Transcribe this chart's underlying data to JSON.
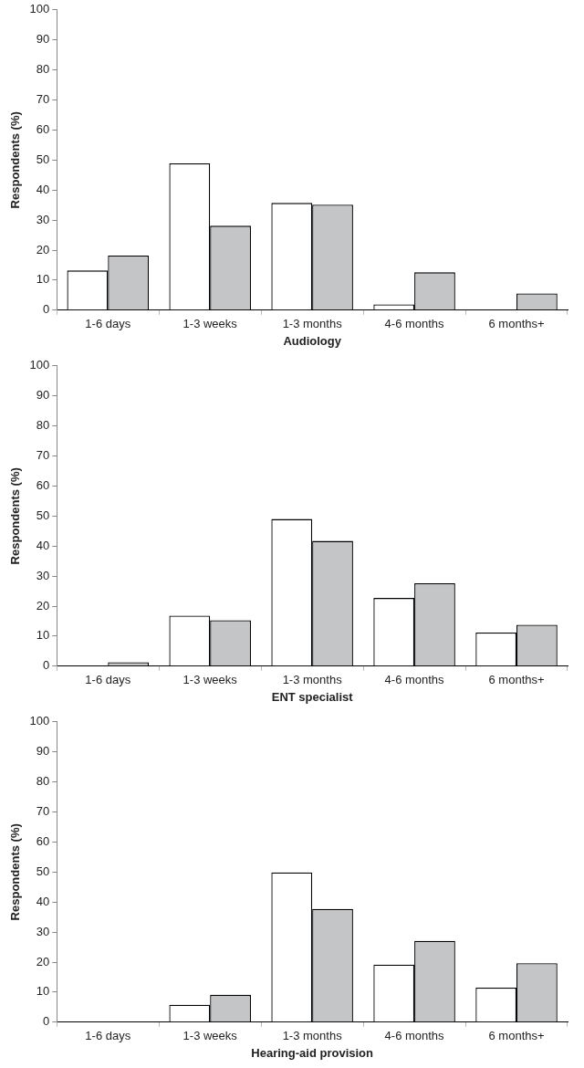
{
  "chart_data": [
    {
      "type": "bar",
      "xlabel": "Audiology",
      "ylabel": "Respondents (%)",
      "categories": [
        "1-6 days",
        "1-3 weeks",
        "1-3 months",
        "4-6 months",
        "6 months+"
      ],
      "series": [
        {
          "color": "#ffffff",
          "values": [
            13.2,
            48.9,
            35.7,
            1.9,
            0
          ]
        },
        {
          "color": "#c4c5c7",
          "values": [
            18.2,
            28.1,
            35.1,
            12.6,
            5.6
          ]
        }
      ],
      "ylim": [
        0,
        100
      ],
      "yticks": [
        0,
        10,
        20,
        30,
        40,
        50,
        60,
        70,
        80,
        90,
        100
      ],
      "grid": false,
      "legend": false
    },
    {
      "type": "bar",
      "xlabel": "ENT specialist",
      "ylabel": "Respondents (%)",
      "categories": [
        "1-6 days",
        "1-3 weeks",
        "1-3 months",
        "4-6 months",
        "6 months+"
      ],
      "series": [
        {
          "color": "#ffffff",
          "values": [
            0,
            16.8,
            49,
            22.7,
            11.2
          ]
        },
        {
          "color": "#c4c5c7",
          "values": [
            1.3,
            15.3,
            41.7,
            27.6,
            13.8
          ]
        }
      ],
      "ylim": [
        0,
        100
      ],
      "yticks": [
        0,
        10,
        20,
        30,
        40,
        50,
        60,
        70,
        80,
        90,
        100
      ],
      "grid": false,
      "legend": false
    },
    {
      "type": "bar",
      "xlabel": "Hearing-aid provision",
      "ylabel": "Respondents (%)",
      "categories": [
        "1-6 days",
        "1-3 weeks",
        "1-3 months",
        "4-6 months",
        "6 months+"
      ],
      "series": [
        {
          "color": "#ffffff",
          "values": [
            0,
            5.8,
            49.9,
            19.2,
            11.5
          ]
        },
        {
          "color": "#c4c5c7",
          "values": [
            0,
            9.1,
            37.7,
            27.1,
            19.6
          ]
        }
      ],
      "ylim": [
        0,
        100
      ],
      "yticks": [
        0,
        10,
        20,
        30,
        40,
        50,
        60,
        70,
        80,
        90,
        100
      ],
      "grid": false,
      "legend": false
    }
  ]
}
